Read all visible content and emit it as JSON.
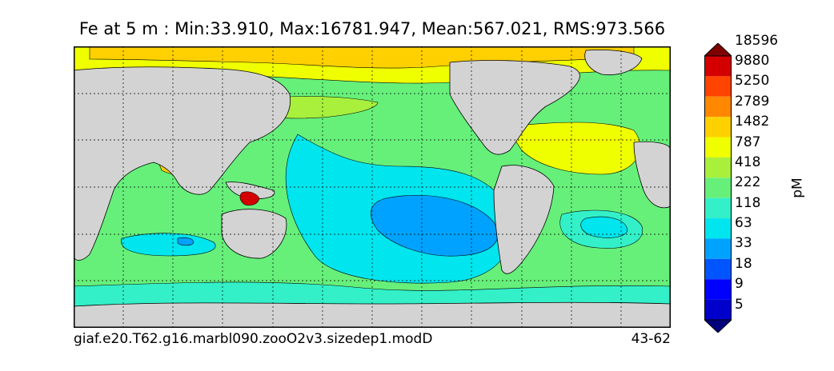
{
  "title": "Fe at 5 m : Min:33.910, Max:16781.947, Mean:567.021, RMS:973.566",
  "footer": {
    "case": "giaf.e20.T62.g16.marbl090.zooO2v3.sizedep1.modD",
    "years": "43-62"
  },
  "colorbar": {
    "unit": "pM",
    "levels": [
      "5",
      "9",
      "18",
      "33",
      "63",
      "118",
      "222",
      "418",
      "787",
      "1482",
      "2789",
      "5250",
      "9880",
      "18596"
    ],
    "colors": [
      "#00007f",
      "#0000cc",
      "#0000ff",
      "#0055ff",
      "#00a2ff",
      "#00e5ee",
      "#33f0c8",
      "#66f07a",
      "#a8f03c",
      "#f0ff00",
      "#ffd000",
      "#ff8800",
      "#ff4400",
      "#d40000",
      "#7f0000"
    ]
  },
  "map": {
    "land_color": "#d3d3d3",
    "ocean_base_color": "#66f07a",
    "gridlines": "dotted"
  }
}
